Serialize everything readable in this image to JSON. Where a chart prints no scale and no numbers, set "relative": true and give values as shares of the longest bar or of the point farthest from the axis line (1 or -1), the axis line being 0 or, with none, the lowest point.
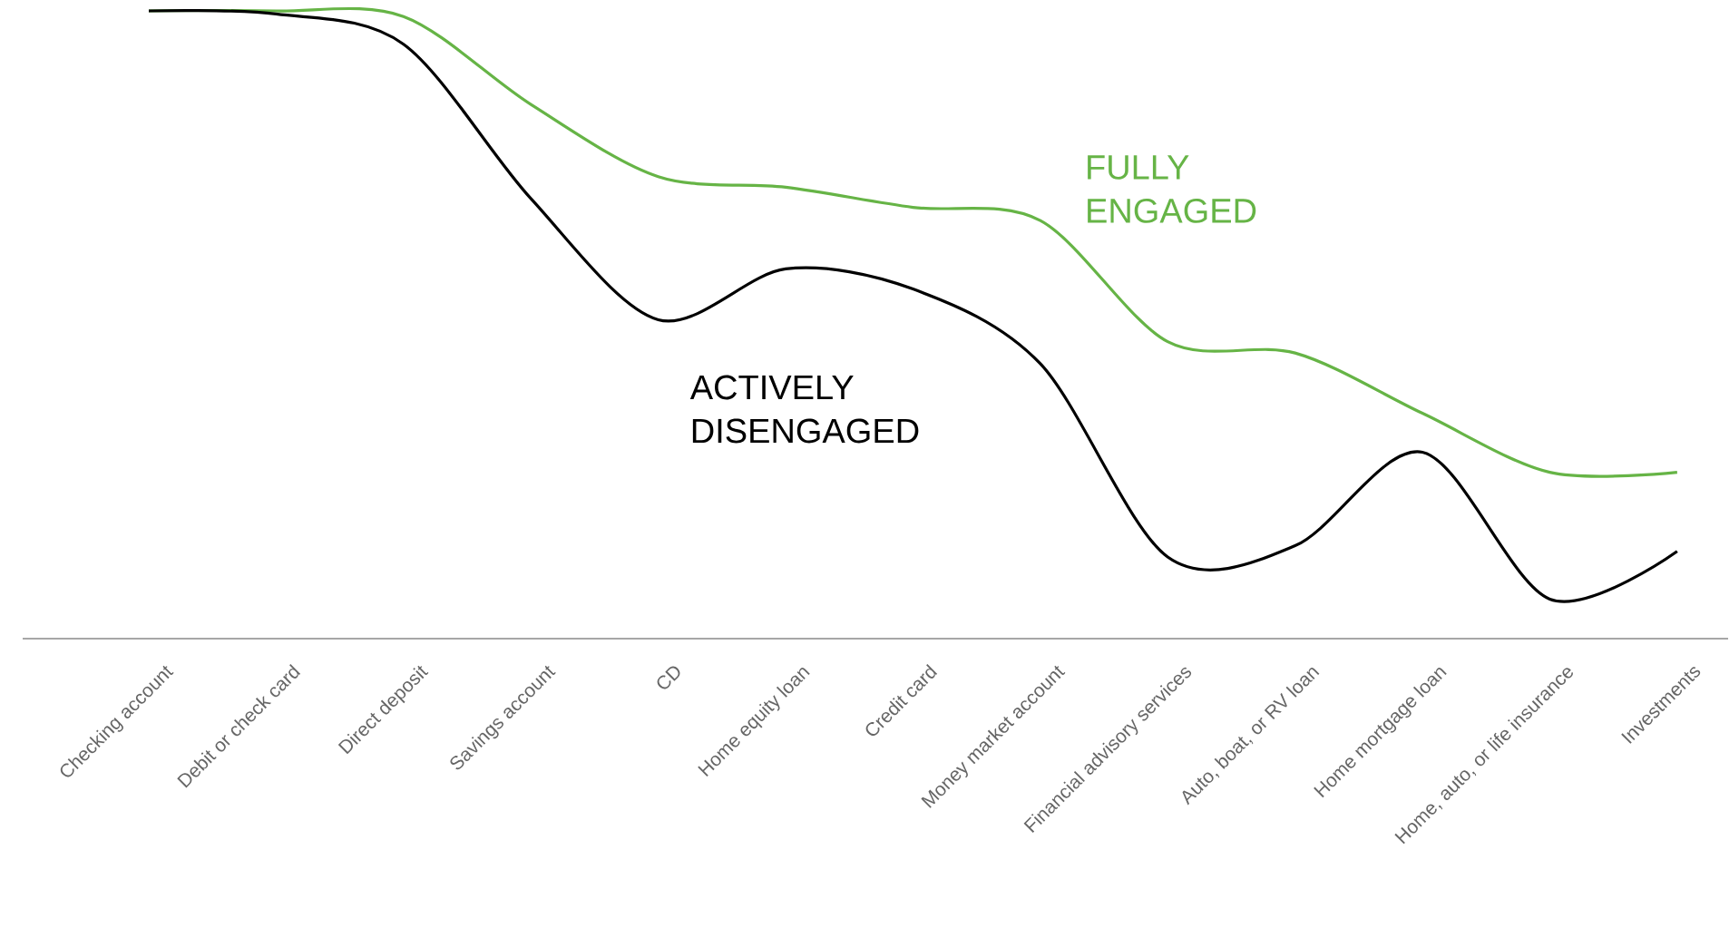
{
  "chart_data": {
    "type": "line",
    "relative": true,
    "categories": [
      "Checking account",
      "Debit or check card",
      "Direct deposit",
      "Savings account",
      "CD",
      "Home equity loan",
      "Credit card",
      "Money market account",
      "Financial advisory services",
      "Auto, boat, or RV loan",
      "Home mortgage loan",
      "Home, auto, or life insurance",
      "Investments"
    ],
    "series": [
      {
        "name": "FULLY ENGAGED",
        "color": "#66b446",
        "values": [
          1,
          1,
          0.991,
          0.851,
          0.736,
          0.719,
          0.687,
          0.666,
          0.473,
          0.455,
          0.359,
          0.265,
          0.265
        ]
      },
      {
        "name": "ACTIVELY DISENGAGED",
        "color": "#000000",
        "values": [
          1,
          0.995,
          0.947,
          0.701,
          0.508,
          0.589,
          0.557,
          0.438,
          0.13,
          0.148,
          0.297,
          0.063,
          0.139
        ]
      }
    ]
  }
}
